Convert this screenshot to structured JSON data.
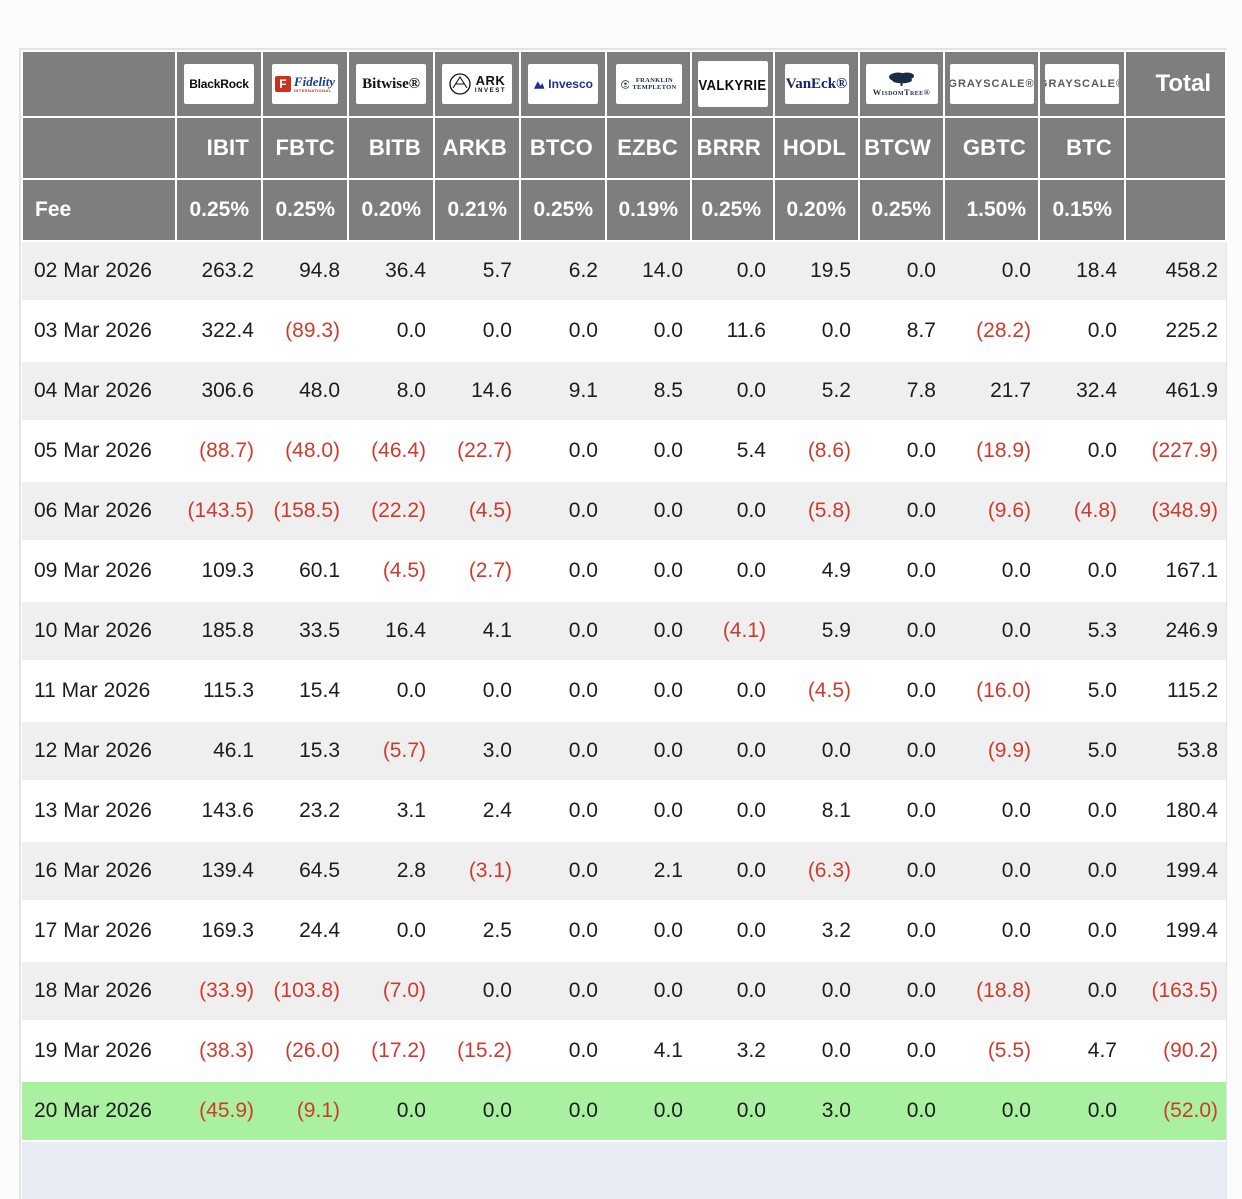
{
  "table": {
    "fee_label": "Fee",
    "total_label": "Total",
    "providers": [
      {
        "id": "blackrock",
        "label": "BlackRock"
      },
      {
        "id": "fidelity",
        "initial": "F",
        "label": "Fidelity",
        "sub": "INTERNATIONAL"
      },
      {
        "id": "bitwise",
        "label": "Bitwise®"
      },
      {
        "id": "ark",
        "label": "ARK",
        "sub": "INVEST"
      },
      {
        "id": "invesco",
        "label": "Invesco"
      },
      {
        "id": "franklin",
        "label": "FRANKLIN",
        "sub": "TEMPLETON"
      },
      {
        "id": "valkyrie",
        "label": "VALKYRIE"
      },
      {
        "id": "vaneck",
        "label": "VanEck®"
      },
      {
        "id": "wisdomtree",
        "label": "WisdomTree®"
      },
      {
        "id": "grayscale",
        "label": "GRAYSCALE®"
      },
      {
        "id": "grayscale2",
        "label": "GRAYSCALE®"
      }
    ],
    "tickers": [
      "IBIT",
      "FBTC",
      "BITB",
      "ARKB",
      "BTCO",
      "EZBC",
      "BRRR",
      "HODL",
      "BTCW",
      "GBTC",
      "BTC"
    ],
    "fees": [
      "0.25%",
      "0.25%",
      "0.20%",
      "0.21%",
      "0.25%",
      "0.19%",
      "0.25%",
      "0.20%",
      "0.25%",
      "1.50%",
      "0.15%"
    ],
    "rows": [
      {
        "date": "02 Mar 2026",
        "values": [
          "263.2",
          "94.8",
          "36.4",
          "5.7",
          "6.2",
          "14.0",
          "0.0",
          "19.5",
          "0.0",
          "0.0",
          "18.4"
        ],
        "total": "458.2",
        "highlight": false
      },
      {
        "date": "03 Mar 2026",
        "values": [
          "322.4",
          "(89.3)",
          "0.0",
          "0.0",
          "0.0",
          "0.0",
          "11.6",
          "0.0",
          "8.7",
          "(28.2)",
          "0.0"
        ],
        "total": "225.2",
        "highlight": false
      },
      {
        "date": "04 Mar 2026",
        "values": [
          "306.6",
          "48.0",
          "8.0",
          "14.6",
          "9.1",
          "8.5",
          "0.0",
          "5.2",
          "7.8",
          "21.7",
          "32.4"
        ],
        "total": "461.9",
        "highlight": false
      },
      {
        "date": "05 Mar 2026",
        "values": [
          "(88.7)",
          "(48.0)",
          "(46.4)",
          "(22.7)",
          "0.0",
          "0.0",
          "5.4",
          "(8.6)",
          "0.0",
          "(18.9)",
          "0.0"
        ],
        "total": "(227.9)",
        "highlight": false
      },
      {
        "date": "06 Mar 2026",
        "values": [
          "(143.5)",
          "(158.5)",
          "(22.2)",
          "(4.5)",
          "0.0",
          "0.0",
          "0.0",
          "(5.8)",
          "0.0",
          "(9.6)",
          "(4.8)"
        ],
        "total": "(348.9)",
        "highlight": false
      },
      {
        "date": "09 Mar 2026",
        "values": [
          "109.3",
          "60.1",
          "(4.5)",
          "(2.7)",
          "0.0",
          "0.0",
          "0.0",
          "4.9",
          "0.0",
          "0.0",
          "0.0"
        ],
        "total": "167.1",
        "highlight": false
      },
      {
        "date": "10 Mar 2026",
        "values": [
          "185.8",
          "33.5",
          "16.4",
          "4.1",
          "0.0",
          "0.0",
          "(4.1)",
          "5.9",
          "0.0",
          "0.0",
          "5.3"
        ],
        "total": "246.9",
        "highlight": false
      },
      {
        "date": "11 Mar 2026",
        "values": [
          "115.3",
          "15.4",
          "0.0",
          "0.0",
          "0.0",
          "0.0",
          "0.0",
          "(4.5)",
          "0.0",
          "(16.0)",
          "5.0"
        ],
        "total": "115.2",
        "highlight": false
      },
      {
        "date": "12 Mar 2026",
        "values": [
          "46.1",
          "15.3",
          "(5.7)",
          "3.0",
          "0.0",
          "0.0",
          "0.0",
          "0.0",
          "0.0",
          "(9.9)",
          "5.0"
        ],
        "total": "53.8",
        "highlight": false
      },
      {
        "date": "13 Mar 2026",
        "values": [
          "143.6",
          "23.2",
          "3.1",
          "2.4",
          "0.0",
          "0.0",
          "0.0",
          "8.1",
          "0.0",
          "0.0",
          "0.0"
        ],
        "total": "180.4",
        "highlight": false
      },
      {
        "date": "16 Mar 2026",
        "values": [
          "139.4",
          "64.5",
          "2.8",
          "(3.1)",
          "0.0",
          "2.1",
          "0.0",
          "(6.3)",
          "0.0",
          "0.0",
          "0.0"
        ],
        "total": "199.4",
        "highlight": false
      },
      {
        "date": "17 Mar 2026",
        "values": [
          "169.3",
          "24.4",
          "0.0",
          "2.5",
          "0.0",
          "0.0",
          "0.0",
          "3.2",
          "0.0",
          "0.0",
          "0.0"
        ],
        "total": "199.4",
        "highlight": false
      },
      {
        "date": "18 Mar 2026",
        "values": [
          "(33.9)",
          "(103.8)",
          "(7.0)",
          "0.0",
          "0.0",
          "0.0",
          "0.0",
          "0.0",
          "0.0",
          "(18.8)",
          "0.0"
        ],
        "total": "(163.5)",
        "highlight": false
      },
      {
        "date": "19 Mar 2026",
        "values": [
          "(38.3)",
          "(26.0)",
          "(17.2)",
          "(15.2)",
          "0.0",
          "4.1",
          "3.2",
          "0.0",
          "0.0",
          "(5.5)",
          "4.7"
        ],
        "total": "(90.2)",
        "highlight": false
      },
      {
        "date": "20 Mar 2026",
        "values": [
          "(45.9)",
          "(9.1)",
          "0.0",
          "0.0",
          "0.0",
          "0.0",
          "0.0",
          "3.0",
          "0.0",
          "0.0",
          "0.0"
        ],
        "total": "(52.0)",
        "highlight": true
      }
    ]
  },
  "colors": {
    "header_bg": "#7e7e7e",
    "row_stripe": "#efefef",
    "negative_text": "#ce3b2e",
    "highlight_row": "#a9f0a0"
  }
}
